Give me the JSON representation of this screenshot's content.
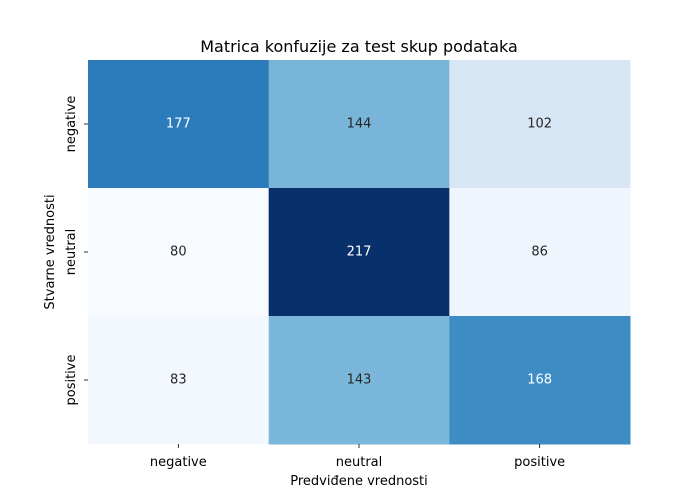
{
  "chart_data": {
    "type": "heatmap",
    "title": "Matrica konfuzije za test skup podataka",
    "xlabel": "Predviđene vrednosti",
    "ylabel": "Stvarne vrednosti",
    "x_categories": [
      "negative",
      "neutral",
      "positive"
    ],
    "y_categories": [
      "negative",
      "neutral",
      "positive"
    ],
    "values": [
      [
        177,
        144,
        102
      ],
      [
        80,
        217,
        86
      ],
      [
        83,
        143,
        168
      ]
    ],
    "colormap": "Blues",
    "vmin": 80,
    "vmax": 217,
    "colorbar": false,
    "annotated": true
  }
}
